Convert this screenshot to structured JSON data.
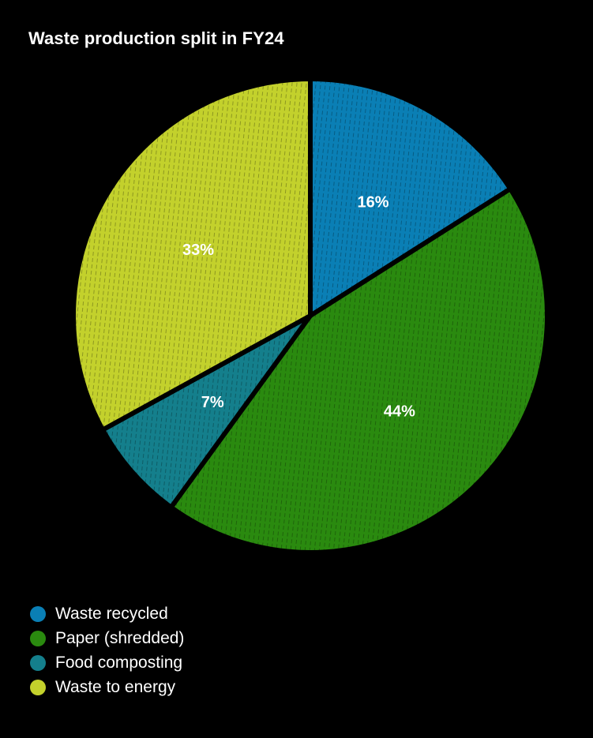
{
  "chart_data": {
    "type": "pie",
    "title": "Waste production split in FY24",
    "slices": [
      {
        "label": "Waste recycled",
        "value": 16,
        "display": "16%",
        "color": "#0a7fb5"
      },
      {
        "label": "Paper (shredded)",
        "value": 44,
        "display": "44%",
        "color": "#2a8a0f"
      },
      {
        "label": "Food composting",
        "value": 7,
        "display": "7%",
        "color": "#147f8c"
      },
      {
        "label": "Waste to energy",
        "value": 33,
        "display": "33%",
        "color": "#c3d12c"
      }
    ],
    "legend_position": "bottom-left",
    "pattern": "dashed-hatch"
  }
}
